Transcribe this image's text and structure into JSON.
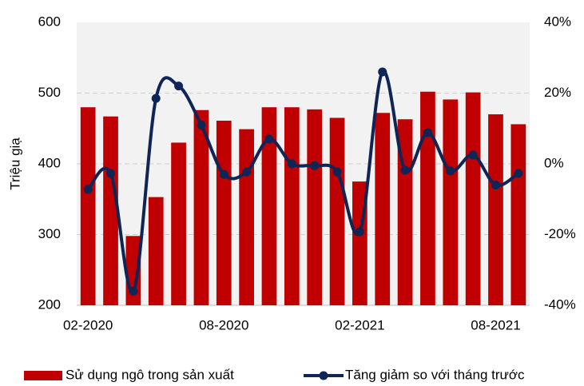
{
  "chart_data": {
    "type": "bar_line",
    "y_label": "Triệu giạ",
    "categories": [
      "02-2020",
      null,
      null,
      null,
      null,
      null,
      "08-2020",
      null,
      null,
      null,
      null,
      null,
      "02-2021",
      null,
      null,
      null,
      null,
      null,
      "08-2021",
      null
    ],
    "series": [
      {
        "name": "Sử dụng ngô trong sản xuất",
        "color": "#c00000",
        "type": "bar",
        "values": [
          480,
          467,
          298,
          353,
          430,
          476,
          461,
          449,
          480,
          480,
          477,
          465,
          375,
          472,
          463,
          502,
          491,
          501,
          470,
          456
        ]
      },
      {
        "name": "Tăng giảm so với tháng trước",
        "color": "#0f2556",
        "type": "line",
        "axis": "y2",
        "values": [
          -7.2,
          -2.7,
          -36,
          18.5,
          22,
          11,
          -3,
          -2.3,
          7,
          0,
          -0.5,
          -2.3,
          -19.2,
          26,
          -1.8,
          8.8,
          -2,
          2.5,
          -6,
          -2.7
        ]
      }
    ],
    "ylim": [
      200,
      600
    ],
    "yticks": [
      200,
      300,
      400,
      500,
      600
    ],
    "y2lim": [
      -40,
      40
    ],
    "y2ticks": [
      {
        "value": -40,
        "label": "-40%"
      },
      {
        "value": -20,
        "label": "-20%"
      },
      {
        "value": 0,
        "label": "0%"
      },
      {
        "value": 20,
        "label": "20%"
      },
      {
        "value": 40,
        "label": "40%"
      }
    ],
    "grid": true,
    "legend": "bottom"
  }
}
